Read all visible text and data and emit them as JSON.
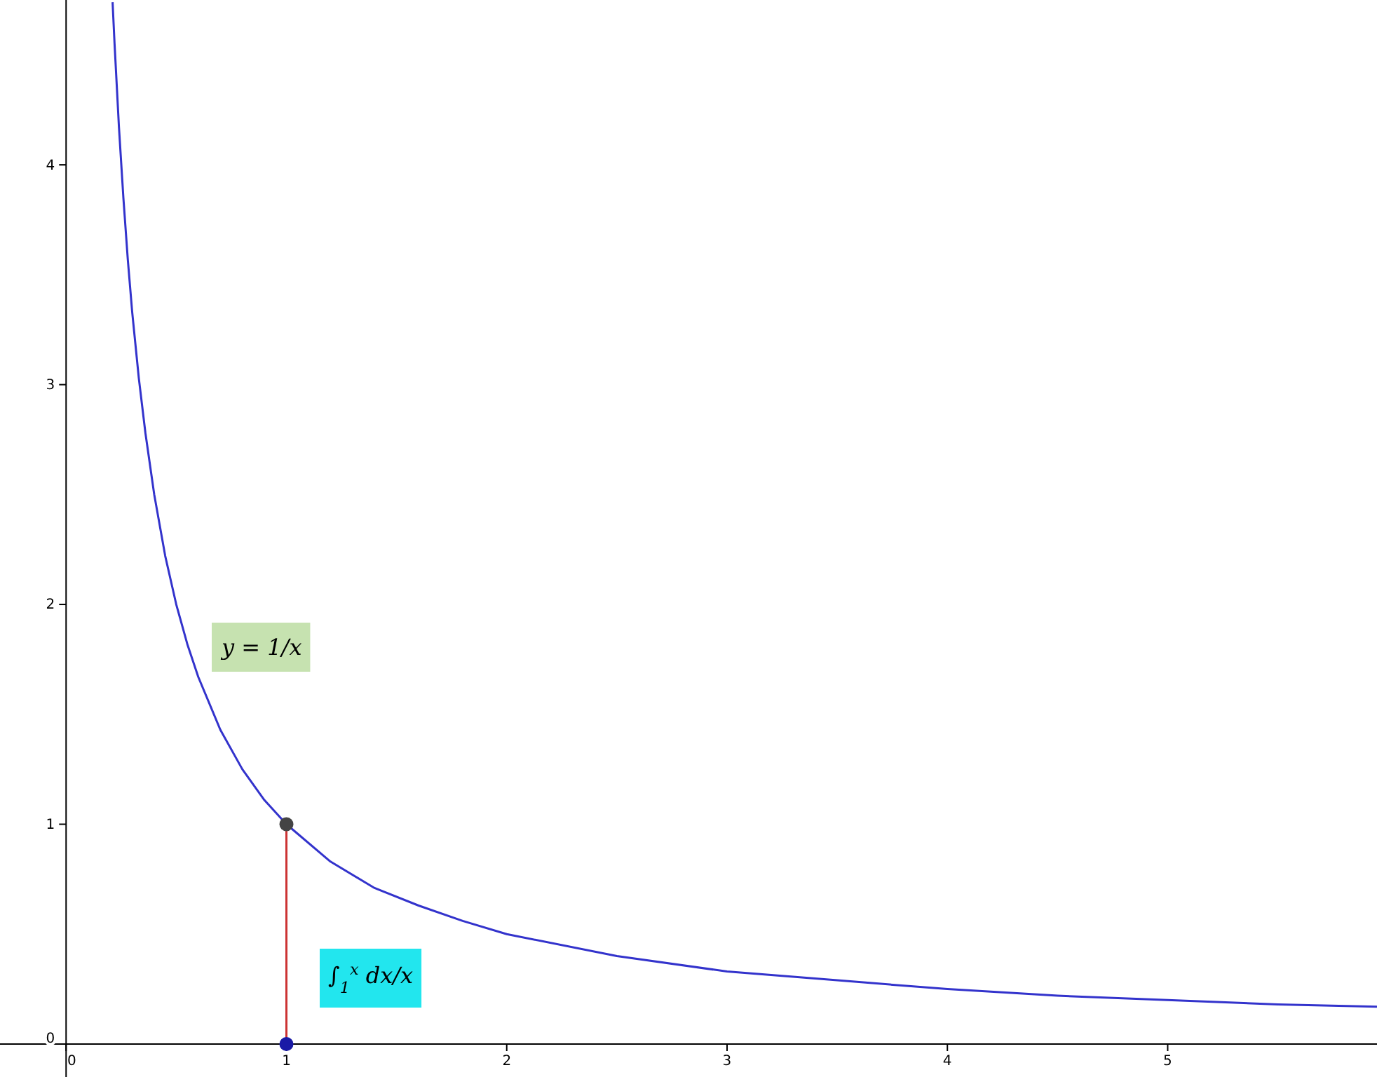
{
  "chart_data": {
    "type": "line",
    "xlim": [
      -0.3,
      5.95
    ],
    "ylim": [
      -0.15,
      4.75
    ],
    "xticks": [
      0,
      1,
      2,
      3,
      4,
      5
    ],
    "yticks": [
      0,
      1,
      2,
      3,
      4
    ],
    "series": [
      {
        "type": "line",
        "marker": "none",
        "color": "#3333cc",
        "x": [
          0.211,
          0.22,
          0.24,
          0.26,
          0.28,
          0.3,
          0.33,
          0.36,
          0.4,
          0.45,
          0.5,
          0.55,
          0.6,
          0.7,
          0.8,
          0.9,
          1,
          1.2,
          1.4,
          1.6,
          1.8,
          2,
          2.5,
          3,
          3.5,
          4,
          4.5,
          5,
          5.5,
          5.95
        ],
        "values": [
          4.74,
          4.55,
          4.17,
          3.85,
          3.57,
          3.33,
          3.03,
          2.78,
          2.5,
          2.22,
          2,
          1.82,
          1.67,
          1.43,
          1.25,
          1.11,
          1,
          0.83,
          0.71,
          0.63,
          0.56,
          0.5,
          0.4,
          0.33,
          0.29,
          0.25,
          0.22,
          0.2,
          0.18,
          0.17
        ]
      },
      {
        "type": "line",
        "marker": "none",
        "color": "#cc3333",
        "x": [
          1,
          1
        ],
        "values": [
          0,
          1
        ]
      },
      {
        "type": "scatter",
        "marker": "circle",
        "color": "#444444",
        "x": [
          1
        ],
        "values": [
          1
        ]
      },
      {
        "type": "scatter",
        "marker": "circle",
        "color": "#1a1aa6",
        "x": [
          1
        ],
        "values": [
          0
        ]
      }
    ],
    "annotations": [
      "y = 1/x",
      "∫$_{1}$$^{x}$ dx/x"
    ]
  }
}
